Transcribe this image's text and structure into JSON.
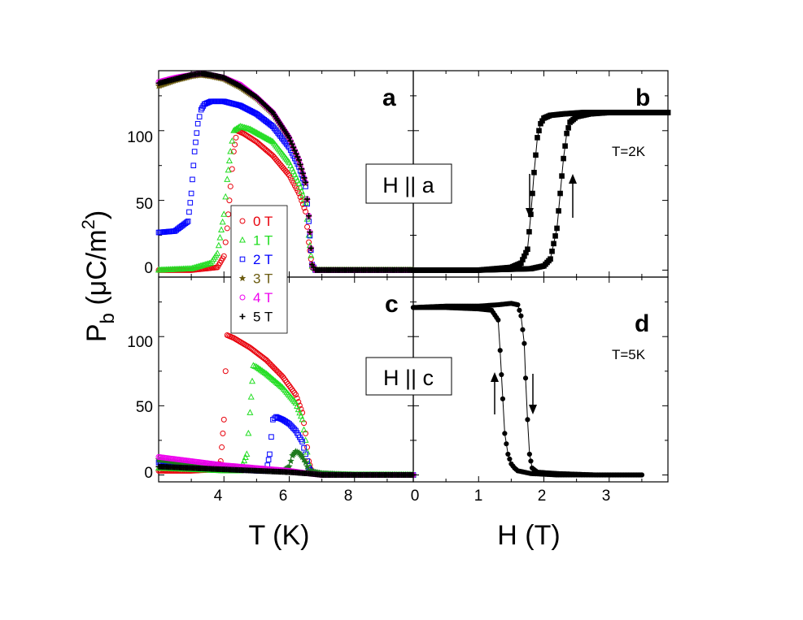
{
  "chart_data": [
    {
      "panel": "a",
      "type": "scatter",
      "xlabel": "T (K)",
      "ylabel": "P_b (μC/m²)",
      "xlim": [
        2.0,
        9.8
      ],
      "ylim": [
        -5,
        143
      ],
      "xticks": [],
      "yticks": [
        0,
        50,
        100
      ],
      "annotation": "H || a",
      "legend_position": "lower-left",
      "series": [
        {
          "name": "0 T",
          "color": "#e8000b",
          "marker": "circle",
          "x": [
            2.0,
            3.0,
            3.8,
            4.0,
            4.1,
            4.2,
            4.3,
            4.4,
            4.6,
            5.0,
            5.5,
            6.0,
            6.3,
            6.5,
            6.6,
            6.7,
            6.8,
            7.5,
            8.5,
            9.8
          ],
          "y": [
            0,
            0,
            2,
            10,
            30,
            60,
            85,
            100,
            98,
            92,
            82,
            68,
            55,
            42,
            20,
            2,
            0,
            0,
            0,
            0
          ]
        },
        {
          "name": "1 T",
          "color": "#22dd22",
          "marker": "triangle",
          "x": [
            2.0,
            3.0,
            3.6,
            3.8,
            4.0,
            4.1,
            4.2,
            4.3,
            4.5,
            4.8,
            5.5,
            6.0,
            6.3,
            6.5,
            6.6,
            6.7,
            6.8,
            7.5,
            8.5,
            9.8
          ],
          "y": [
            0,
            1,
            5,
            12,
            40,
            65,
            85,
            100,
            103,
            101,
            92,
            77,
            62,
            48,
            25,
            3,
            0,
            0,
            0,
            0
          ]
        },
        {
          "name": "2 T",
          "color": "#0000ff",
          "marker": "square",
          "x": [
            2.0,
            2.5,
            2.9,
            3.0,
            3.1,
            3.2,
            3.3,
            3.4,
            3.6,
            4.0,
            4.5,
            5.0,
            5.5,
            6.0,
            6.3,
            6.5,
            6.6,
            6.7,
            6.8,
            7.5,
            8.5,
            9.8
          ],
          "y": [
            27,
            28,
            35,
            55,
            85,
            105,
            115,
            119,
            121,
            121,
            118,
            112,
            103,
            88,
            74,
            60,
            35,
            4,
            0,
            0,
            0,
            0
          ]
        },
        {
          "name": "3 T",
          "color": "#6b5b10",
          "marker": "star",
          "x": [
            2.0,
            2.5,
            3.0,
            3.3,
            3.6,
            4.0,
            4.5,
            5.0,
            5.5,
            6.0,
            6.3,
            6.5,
            6.6,
            6.7,
            6.8,
            7.5,
            8.5,
            9.8
          ],
          "y": [
            132,
            136,
            139,
            140,
            139,
            137,
            131,
            123,
            112,
            94,
            78,
            62,
            38,
            4,
            0,
            0,
            0,
            0
          ]
        },
        {
          "name": "4 T",
          "color": "#ee00ee",
          "marker": "circle",
          "x": [
            2.0,
            2.5,
            3.0,
            3.3,
            3.6,
            4.0,
            4.5,
            5.0,
            5.5,
            6.0,
            6.3,
            6.5,
            6.6,
            6.7,
            6.8,
            7.5,
            8.5,
            9.8
          ],
          "y": [
            135,
            138,
            140,
            141,
            140,
            138,
            133,
            124,
            113,
            95,
            79,
            63,
            39,
            4,
            0,
            0,
            0,
            0
          ]
        },
        {
          "name": "5 T",
          "color": "#000000",
          "marker": "plus",
          "x": [
            2.0,
            2.5,
            3.0,
            3.3,
            3.6,
            4.0,
            4.5,
            5.0,
            5.5,
            6.0,
            6.3,
            6.5,
            6.6,
            6.7,
            6.8,
            7.5,
            8.5,
            9.8
          ],
          "y": [
            134,
            137,
            140,
            141,
            140,
            138,
            132,
            124,
            113,
            95,
            79,
            63,
            39,
            4,
            0,
            0,
            0,
            0
          ]
        }
      ]
    },
    {
      "panel": "b",
      "type": "line",
      "xlabel": "H (T)",
      "xlim": [
        0,
        3.9
      ],
      "ylim": [
        -5,
        143
      ],
      "annotation": "T=2K",
      "arrows": [
        "down",
        "up"
      ],
      "series": [
        {
          "name": "",
          "color": "#000000",
          "marker": "square",
          "x": [
            0,
            1.0,
            1.5,
            1.65,
            1.75,
            1.8,
            1.85,
            1.9,
            1.95,
            2.0,
            2.1,
            2.3,
            2.6,
            3.0,
            3.5,
            3.9
          ],
          "y": [
            0,
            0,
            2,
            5,
            15,
            40,
            70,
            95,
            105,
            109,
            111,
            112,
            113,
            113,
            113,
            113
          ]
        },
        {
          "name": "",
          "color": "#000000",
          "marker": "square",
          "x": [
            0,
            1.0,
            1.8,
            2.0,
            2.1,
            2.2,
            2.25,
            2.3,
            2.35,
            2.4,
            2.5,
            2.7,
            3.0,
            3.5,
            3.9
          ],
          "y": [
            0,
            0,
            1,
            3,
            8,
            30,
            55,
            80,
            98,
            106,
            110,
            112,
            113,
            113,
            113
          ]
        }
      ]
    },
    {
      "panel": "c",
      "type": "scatter",
      "xlabel": "T (K)",
      "xlim": [
        2.0,
        9.8
      ],
      "ylim": [
        -5,
        143
      ],
      "xticks": [
        4,
        6,
        8
      ],
      "yticks": [
        0,
        50,
        100
      ],
      "annotation": "H || c",
      "series": [
        {
          "name": "0 T",
          "color": "#e8000b",
          "marker": "circle",
          "x": [
            2.0,
            3.0,
            3.8,
            3.9,
            4.0,
            4.05,
            4.1,
            4.3,
            4.8,
            5.3,
            5.8,
            6.2,
            6.4,
            6.5,
            6.6,
            6.7,
            7.5,
            8.5,
            9.8
          ],
          "y": [
            3,
            3,
            4,
            10,
            40,
            75,
            101,
            99,
            92,
            83,
            71,
            58,
            45,
            30,
            10,
            1,
            0,
            0,
            0
          ]
        },
        {
          "name": "1 T",
          "color": "#22dd22",
          "marker": "triangle",
          "x": [
            2.0,
            3.0,
            4.0,
            4.5,
            4.7,
            4.8,
            4.9,
            5.0,
            5.3,
            5.8,
            6.2,
            6.4,
            6.5,
            6.6,
            6.7,
            7.5,
            8.5,
            9.8
          ],
          "y": [
            5,
            4,
            3,
            3,
            15,
            45,
            79,
            78,
            73,
            63,
            52,
            40,
            25,
            8,
            1,
            0,
            0,
            0
          ]
        },
        {
          "name": "2 T",
          "color": "#0000ff",
          "marker": "square",
          "x": [
            2.0,
            3.0,
            4.0,
            5.0,
            5.3,
            5.4,
            5.5,
            5.6,
            5.8,
            6.0,
            6.2,
            6.4,
            6.5,
            6.6,
            6.7,
            7.5,
            8.5,
            9.8
          ],
          "y": [
            9,
            7,
            5,
            3,
            3,
            15,
            40,
            42,
            40,
            37,
            32,
            24,
            15,
            5,
            1,
            0,
            0,
            0
          ]
        },
        {
          "name": "3 T",
          "color": "#1e7a1e",
          "marker": "star",
          "x": [
            2.0,
            3.0,
            4.0,
            5.0,
            5.8,
            6.0,
            6.1,
            6.2,
            6.3,
            6.4,
            6.5,
            6.6,
            7.0,
            8.0,
            9.8
          ],
          "y": [
            11,
            8,
            6,
            4,
            3,
            6,
            14,
            17,
            16,
            13,
            9,
            3,
            1,
            0,
            0
          ]
        },
        {
          "name": "4 T",
          "color": "#ee00ee",
          "marker": "circle",
          "x": [
            2.0,
            3.0,
            4.0,
            5.0,
            6.0,
            6.6,
            7.0,
            8.0,
            9.8
          ],
          "y": [
            13,
            10,
            7,
            5,
            3,
            1,
            0,
            0,
            0
          ]
        },
        {
          "name": "5 T",
          "color": "#000000",
          "marker": "plus",
          "x": [
            2.0,
            3.0,
            4.0,
            5.0,
            6.0,
            6.6,
            7.0,
            8.0,
            9.8
          ],
          "y": [
            6,
            5,
            4,
            3,
            2,
            1,
            0,
            0,
            0
          ]
        }
      ]
    },
    {
      "panel": "d",
      "type": "line",
      "xlabel": "H (T)",
      "xlim": [
        0,
        3.9
      ],
      "ylim": [
        -5,
        143
      ],
      "xticks": [
        0,
        1,
        2,
        3
      ],
      "annotation": "T=5K",
      "arrows": [
        "up",
        "down"
      ],
      "series": [
        {
          "name": "",
          "color": "#000000",
          "marker": "circle",
          "x": [
            0,
            0.5,
            1.0,
            1.2,
            1.3,
            1.33,
            1.37,
            1.4,
            1.45,
            1.5,
            1.55,
            1.6,
            1.8,
            2.2,
            2.8,
            3.5
          ],
          "y": [
            121,
            121,
            120,
            119,
            112,
            90,
            55,
            30,
            15,
            8,
            5,
            3,
            1,
            0,
            0,
            0
          ]
        },
        {
          "name": "",
          "color": "#000000",
          "marker": "circle",
          "x": [
            0,
            0.5,
            1.0,
            1.3,
            1.5,
            1.6,
            1.65,
            1.7,
            1.72,
            1.75,
            1.78,
            1.82,
            1.9,
            2.2,
            2.8,
            3.5
          ],
          "y": [
            121,
            122,
            122,
            123,
            124,
            123,
            115,
            95,
            70,
            40,
            15,
            5,
            2,
            1,
            0,
            0
          ]
        }
      ]
    }
  ],
  "panel_labels": {
    "a": "a",
    "b": "b",
    "c": "c",
    "d": "d"
  },
  "ylabel_main": "P",
  "ylabel_sub": "b",
  "ylabel_unit_open": " (μC/m",
  "ylabel_unit_sup": "2",
  "ylabel_unit_close": ")",
  "xlabel_left": "T (K)",
  "xlabel_right": "H (T)",
  "annotations": {
    "h_parallel_a": "H || a",
    "h_parallel_c": "H || c",
    "t2k": "T=2K",
    "t5k": "T=5K"
  },
  "yticks_a": [
    "0",
    "50",
    "100"
  ],
  "yticks_c": [
    "0",
    "50",
    "100"
  ],
  "xticks_c": [
    "4",
    "6",
    "8"
  ],
  "xticks_d": [
    "0",
    "1",
    "2",
    "3"
  ],
  "legend": [
    "0 T",
    "1 T",
    "2 T",
    "3 T",
    "4 T",
    "5 T"
  ]
}
